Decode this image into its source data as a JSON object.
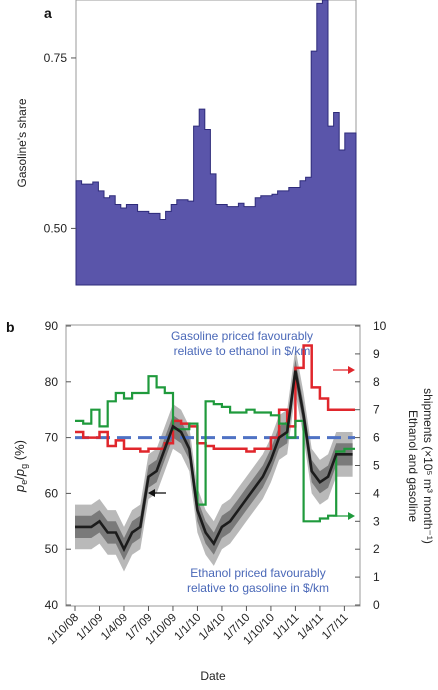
{
  "colors": {
    "area_fill": "#5a55aa",
    "area_stroke": "#2e2b7a",
    "band_outer": "#b9b9b9",
    "band_inner": "#7a7a7a",
    "median": "#1c1c1c",
    "red": "#e0262c",
    "green": "#1f9a3c",
    "dashed": "#4f72c4",
    "annot": "#4a68b8"
  },
  "chart_data": [
    {
      "panel": "a",
      "type": "area",
      "ylabel": "Gasoline's share",
      "ylim": [
        0.417,
        0.835
      ],
      "yticks": [
        0.5,
        0.75
      ],
      "ytick_labels": [
        "0.50",
        "0.75"
      ],
      "x_index_range": [
        0,
        49
      ],
      "series": [
        {
          "step": true,
          "x": [
            0,
            1,
            2,
            3,
            4,
            5,
            6,
            7,
            8,
            9,
            10,
            11,
            12,
            13,
            14,
            15,
            16,
            17,
            18,
            19,
            20,
            21,
            22,
            23,
            24,
            25,
            26,
            27,
            28,
            29,
            30,
            31,
            32,
            33,
            34,
            35,
            36,
            37,
            38,
            39,
            40,
            41,
            42,
            43,
            44,
            45,
            46,
            47,
            48,
            49
          ],
          "values": [
            0.57,
            0.565,
            0.565,
            0.568,
            0.555,
            0.545,
            0.548,
            0.535,
            0.53,
            0.535,
            0.535,
            0.525,
            0.525,
            0.522,
            0.522,
            0.513,
            0.525,
            0.535,
            0.542,
            0.542,
            0.54,
            0.65,
            0.675,
            0.645,
            0.58,
            0.535,
            0.535,
            0.532,
            0.532,
            0.537,
            0.532,
            0.532,
            0.545,
            0.548,
            0.548,
            0.55,
            0.555,
            0.555,
            0.56,
            0.56,
            0.57,
            0.575,
            0.76,
            0.83,
            0.835,
            0.65,
            0.67,
            0.615,
            0.64,
            0.64
          ]
        }
      ]
    },
    {
      "panel": "b",
      "type": "line",
      "xlabel": "Date",
      "ylabel_left": "pe/pg (%)",
      "ylabel_right": "Ethanol and gasoline shipments (×10⁵ m³ month⁻¹)",
      "ylim_left": [
        40,
        90
      ],
      "ylim_right": [
        0,
        10
      ],
      "yticks_left": [
        40,
        50,
        60,
        70,
        80,
        90
      ],
      "yticks_right": [
        0,
        1,
        2,
        3,
        4,
        5,
        6,
        7,
        8,
        9,
        10
      ],
      "categories": [
        "1/10/08",
        "1/1/09",
        "1/4/09",
        "1/7/09",
        "1/10/09",
        "1/1/10",
        "1/4/10",
        "1/7/10",
        "1/10/10",
        "1/1/11",
        "1/4/11",
        "1/7/11"
      ],
      "x_range_months": [
        0,
        34.3
      ],
      "dashed_reference": 70,
      "annotations": [
        {
          "text_lines": [
            "Gasoline priced favourably",
            "relative to ethanol in $/km"
          ]
        },
        {
          "text_lines": [
            "Ethanol priced favourably",
            "relative to gasoline in $/km"
          ]
        }
      ],
      "series": [
        {
          "name": "pe/pg median",
          "axis": "left",
          "x": [
            0,
            1,
            2,
            3,
            4,
            5,
            6,
            7,
            8,
            9,
            10,
            11,
            12,
            13,
            14,
            15,
            16,
            17,
            18,
            19,
            20,
            21,
            22,
            23,
            24,
            25,
            26,
            27,
            28,
            29,
            30,
            31,
            32,
            33,
            34
          ],
          "values": [
            54,
            54,
            54,
            55,
            53,
            53,
            50,
            53,
            54,
            63,
            64,
            68,
            72,
            71,
            68,
            57,
            53,
            51,
            54,
            55,
            57,
            59,
            61,
            63,
            66,
            70,
            71,
            82,
            74,
            64,
            62,
            63,
            67,
            67,
            67
          ],
          "band_inner": [
            2,
            2,
            2,
            2,
            2,
            2,
            2,
            2,
            2,
            2,
            2,
            2,
            2,
            2,
            2,
            2,
            2,
            2,
            2,
            2,
            2,
            2,
            2,
            2,
            2,
            2,
            2,
            2,
            2,
            2,
            2,
            2,
            2,
            2,
            2
          ],
          "band_outer": [
            4,
            4,
            4,
            4,
            4,
            4,
            4,
            4,
            4,
            4,
            4,
            4,
            4,
            4,
            4,
            4,
            4,
            4,
            4,
            4,
            4,
            4,
            4,
            4,
            4,
            4,
            4,
            4,
            4,
            4,
            4,
            4,
            4,
            4,
            4
          ]
        },
        {
          "name": "Gasoline shipments",
          "axis": "right",
          "step": true,
          "x": [
            0,
            1,
            2,
            3,
            4,
            5,
            6,
            7,
            8,
            9,
            10,
            11,
            12,
            13,
            14,
            15,
            16,
            17,
            18,
            19,
            20,
            21,
            22,
            23,
            24,
            25,
            26,
            27,
            28,
            29,
            30,
            31,
            32,
            33,
            34
          ],
          "values": [
            6.2,
            6.0,
            6.0,
            6.2,
            5.7,
            5.9,
            5.6,
            5.6,
            5.5,
            5.6,
            5.6,
            5.8,
            6.6,
            6.5,
            6.4,
            5.8,
            5.7,
            5.6,
            5.6,
            5.6,
            5.6,
            5.5,
            5.6,
            5.6,
            6.0,
            7.0,
            6.4,
            8.5,
            9.3,
            7.8,
            7.4,
            7.0,
            7.0,
            7.0,
            7.0
          ]
        },
        {
          "name": "Ethanol shipments",
          "axis": "right",
          "step": true,
          "x": [
            0,
            1,
            2,
            3,
            4,
            5,
            6,
            7,
            8,
            9,
            10,
            11,
            12,
            13,
            14,
            15,
            16,
            17,
            18,
            19,
            20,
            21,
            22,
            23,
            24,
            25,
            26,
            27,
            28,
            29,
            30,
            31,
            32,
            33,
            34
          ],
          "values": [
            6.6,
            6.5,
            7.0,
            6.4,
            7.3,
            7.6,
            7.4,
            7.6,
            7.6,
            8.2,
            7.8,
            7.6,
            6.3,
            6.3,
            6.5,
            3.6,
            7.3,
            7.2,
            7.1,
            6.9,
            6.9,
            7.0,
            6.9,
            6.9,
            6.8,
            6.5,
            6.0,
            6.6,
            3.0,
            3.0,
            3.1,
            3.2,
            5.5,
            5.6,
            5.6
          ]
        }
      ]
    }
  ],
  "panel_a": {
    "label": "a",
    "ylabel": "Gasoline's share",
    "tick_labels": [
      "0.50",
      "0.75"
    ]
  },
  "panel_b": {
    "label": "b",
    "ylabel_left_main": "p",
    "ylabel_left_sub_e": "e",
    "ylabel_left_slash": "/",
    "ylabel_left_sub_g": "g",
    "ylabel_left_suffix": " (%)",
    "ylabel_right_line1": "Ethanol and gasoline",
    "ylabel_right_line2": "shipments (×10⁵ m³ month⁻¹)",
    "xlabel": "Date",
    "annotation_top_1": "Gasoline priced favourably",
    "annotation_top_2": "relative to ethanol in $/km",
    "annotation_bottom_1": "Ethanol priced favourably",
    "annotation_bottom_2": "relative to gasoline in $/km",
    "left_tick_labels": [
      "40",
      "50",
      "60",
      "70",
      "80",
      "90"
    ],
    "right_tick_labels": [
      "0",
      "1",
      "2",
      "3",
      "4",
      "5",
      "6",
      "7",
      "8",
      "9",
      "10"
    ],
    "date_labels": [
      "1/10/08",
      "1/1/09",
      "1/4/09",
      "1/7/09",
      "1/10/09",
      "1/1/10",
      "1/4/10",
      "1/7/10",
      "1/10/10",
      "1/1/11",
      "1/4/11",
      "1/7/11"
    ]
  }
}
